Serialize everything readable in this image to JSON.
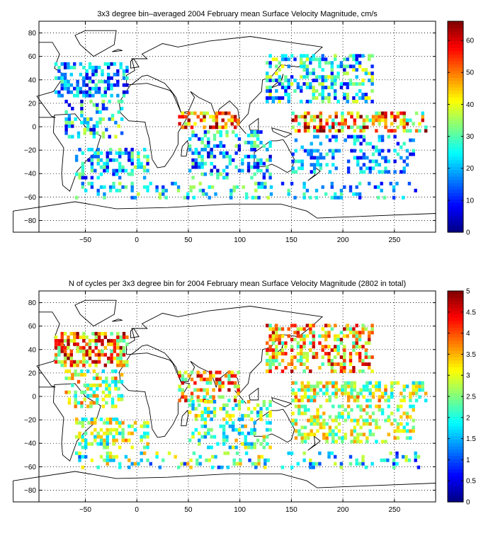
{
  "chart_data": [
    {
      "type": "heatmap",
      "title": "3x3 degree bin–averaged 2004 February mean Surface Velocity Magnitude, cm/s",
      "xlabel": "",
      "ylabel": "",
      "xlim": [
        -95,
        290
      ],
      "ylim": [
        -90,
        90
      ],
      "x_ticks": [
        -50,
        0,
        50,
        100,
        150,
        200,
        250
      ],
      "y_ticks": [
        80,
        60,
        40,
        20,
        0,
        -20,
        -40,
        -60,
        -80
      ],
      "grid": true,
      "bin_size_deg": 3,
      "colorbar": {
        "range": [
          0,
          66
        ],
        "ticks": [
          0,
          10,
          20,
          30,
          40,
          50,
          60
        ],
        "colormap": "jet"
      },
      "regions": [
        {
          "x": [
            -80,
            -10
          ],
          "y": [
            25,
            55
          ],
          "value": 18,
          "spread": 14,
          "density": 0.55
        },
        {
          "x": [
            -70,
            -15
          ],
          "y": [
            -10,
            22
          ],
          "value": 22,
          "spread": 18,
          "density": 0.35
        },
        {
          "x": [
            -60,
            10
          ],
          "y": [
            -45,
            -20
          ],
          "value": 22,
          "spread": 16,
          "density": 0.4
        },
        {
          "x": [
            40,
            100
          ],
          "y": [
            -2,
            12
          ],
          "value": 52,
          "spread": 18,
          "density": 0.55
        },
        {
          "x": [
            50,
            130
          ],
          "y": [
            -45,
            -5
          ],
          "value": 20,
          "spread": 16,
          "density": 0.35
        },
        {
          "x": [
            125,
            230
          ],
          "y": [
            20,
            60
          ],
          "value": 24,
          "spread": 18,
          "density": 0.45
        },
        {
          "x": [
            150,
            280
          ],
          "y": [
            -5,
            12
          ],
          "value": 45,
          "spread": 22,
          "density": 0.55
        },
        {
          "x": [
            150,
            270
          ],
          "y": [
            -40,
            -8
          ],
          "value": 18,
          "spread": 12,
          "density": 0.3
        },
        {
          "x": [
            -60,
            130
          ],
          "y": [
            -62,
            -48
          ],
          "value": 24,
          "spread": 14,
          "density": 0.25
        },
        {
          "x": [
            140,
            280
          ],
          "y": [
            -62,
            -48
          ],
          "value": 20,
          "spread": 12,
          "density": 0.18
        }
      ]
    },
    {
      "type": "heatmap",
      "title": "N of cycles per 3x3 degree bin for 2004 February mean Surface Velocity Magnitude (2802 in total)",
      "xlabel": "",
      "ylabel": "",
      "xlim": [
        -95,
        290
      ],
      "ylim": [
        -90,
        90
      ],
      "x_ticks": [
        -50,
        0,
        50,
        100,
        150,
        200,
        250
      ],
      "y_ticks": [
        80,
        60,
        40,
        20,
        0,
        -20,
        -40,
        -60,
        -80
      ],
      "grid": true,
      "bin_size_deg": 3,
      "colorbar": {
        "range": [
          0,
          5
        ],
        "ticks": [
          0,
          0.5,
          1,
          1.5,
          2,
          2.5,
          3,
          3.5,
          4,
          4.5,
          5
        ],
        "colormap": "jet"
      },
      "regions": [
        {
          "x": [
            -80,
            -10
          ],
          "y": [
            25,
            55
          ],
          "value": 3.6,
          "spread": 1.4,
          "density": 0.65
        },
        {
          "x": [
            -70,
            -15
          ],
          "y": [
            -10,
            22
          ],
          "value": 2.8,
          "spread": 1.2,
          "density": 0.4
        },
        {
          "x": [
            -60,
            10
          ],
          "y": [
            -45,
            -20
          ],
          "value": 2.6,
          "spread": 1.2,
          "density": 0.45
        },
        {
          "x": [
            40,
            100
          ],
          "y": [
            -5,
            20
          ],
          "value": 3.4,
          "spread": 1.4,
          "density": 0.5
        },
        {
          "x": [
            50,
            130
          ],
          "y": [
            -45,
            -5
          ],
          "value": 2.4,
          "spread": 1.2,
          "density": 0.4
        },
        {
          "x": [
            125,
            230
          ],
          "y": [
            20,
            60
          ],
          "value": 3.4,
          "spread": 1.4,
          "density": 0.5
        },
        {
          "x": [
            150,
            280
          ],
          "y": [
            -5,
            12
          ],
          "value": 2.8,
          "spread": 1.2,
          "density": 0.55
        },
        {
          "x": [
            150,
            270
          ],
          "y": [
            -40,
            -8
          ],
          "value": 2.8,
          "spread": 1.0,
          "density": 0.4
        },
        {
          "x": [
            -60,
            130
          ],
          "y": [
            -62,
            -48
          ],
          "value": 2.2,
          "spread": 1.4,
          "density": 0.25
        },
        {
          "x": [
            140,
            280
          ],
          "y": [
            -62,
            -48
          ],
          "value": 1.8,
          "spread": 1.2,
          "density": 0.2
        }
      ]
    }
  ]
}
